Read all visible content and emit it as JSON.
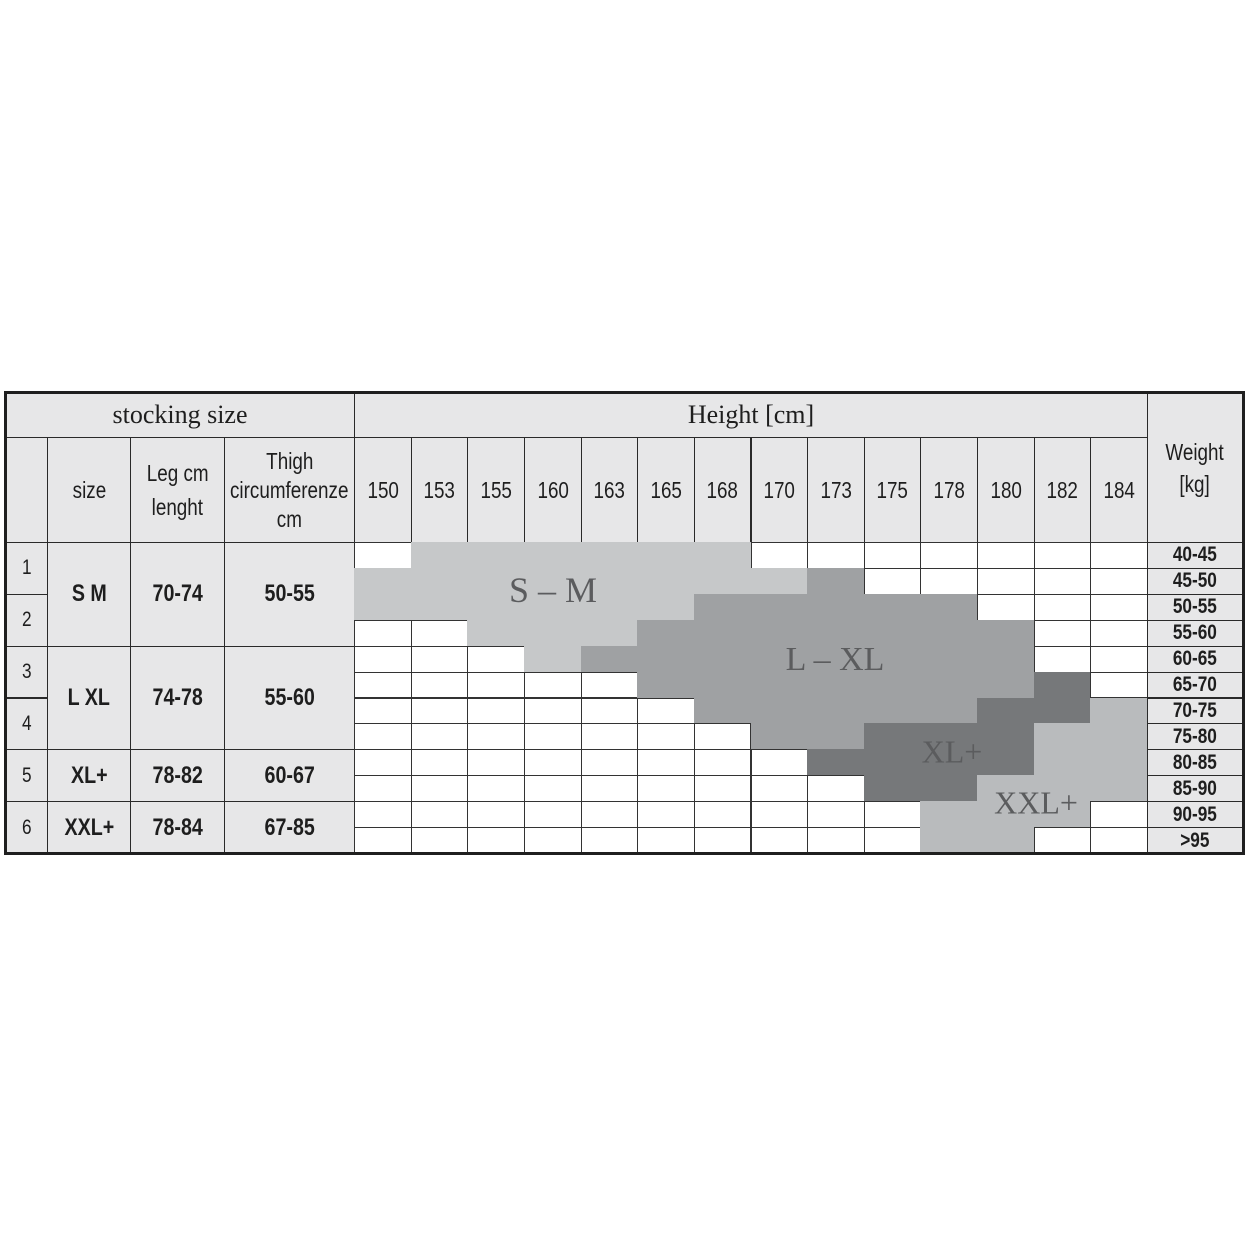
{
  "chart_data": {
    "type": "table",
    "title_left": "stocking size",
    "title_height": "Height [cm]",
    "columns_left": [
      "size",
      "Leg cm lenght",
      "Thigh circumferenze cm"
    ],
    "column_labels_left": {
      "size": "size",
      "leg_line1": "Leg cm",
      "leg_line2": "lenght",
      "thigh_line1": "Thigh",
      "thigh_line2": "circumferenze",
      "thigh_line3": "cm"
    },
    "weight_header": {
      "line1": "Weight",
      "line2": "[kg]"
    },
    "heights": [
      "150",
      "153",
      "155",
      "160",
      "163",
      "165",
      "168",
      "170",
      "173",
      "175",
      "178",
      "180",
      "182",
      "184"
    ],
    "weights": [
      "40-45",
      "45-50",
      "50-55",
      "55-60",
      "60-65",
      "65-70",
      "70-75",
      "75-80",
      "80-85",
      "85-90",
      "90-95",
      ">95"
    ],
    "row_numbers": [
      "1",
      "2",
      "3",
      "4",
      "5",
      "6"
    ],
    "sizes": [
      {
        "size": "S   M",
        "leg": "70-74",
        "thigh": "50-55"
      },
      {
        "size": "L   XL",
        "leg": "74-78",
        "thigh": "55-60"
      },
      {
        "size": "XL+",
        "leg": "78-82",
        "thigh": "60-67"
      },
      {
        "size": "XXL+",
        "leg": "78-84",
        "thigh": "67-85"
      }
    ],
    "zones": [
      {
        "code": 1,
        "label": "S – M",
        "color": "#c6c8c9"
      },
      {
        "code": 2,
        "label": "L – XL",
        "color": "#9fa1a3"
      },
      {
        "code": 3,
        "label": "XL+",
        "color": "#76787a"
      },
      {
        "code": 4,
        "label": "XXL+",
        "color": "#b9bbbd"
      }
    ],
    "grid_note": "rows = weights, columns = heights; 0 = no size",
    "grid": [
      [
        0,
        1,
        1,
        1,
        1,
        1,
        1,
        0,
        0,
        0,
        0,
        0,
        0,
        0
      ],
      [
        1,
        1,
        1,
        1,
        1,
        1,
        1,
        1,
        2,
        0,
        0,
        0,
        0,
        0
      ],
      [
        1,
        1,
        1,
        1,
        1,
        1,
        2,
        2,
        2,
        2,
        2,
        0,
        0,
        0
      ],
      [
        0,
        0,
        1,
        1,
        1,
        2,
        2,
        2,
        2,
        2,
        2,
        2,
        0,
        0
      ],
      [
        0,
        0,
        0,
        1,
        2,
        2,
        2,
        2,
        2,
        2,
        2,
        2,
        0,
        0
      ],
      [
        0,
        0,
        0,
        0,
        0,
        2,
        2,
        2,
        2,
        2,
        2,
        2,
        3,
        0
      ],
      [
        0,
        0,
        0,
        0,
        0,
        0,
        2,
        2,
        2,
        2,
        2,
        3,
        3,
        4
      ],
      [
        0,
        0,
        0,
        0,
        0,
        0,
        0,
        2,
        2,
        3,
        3,
        3,
        4,
        4
      ],
      [
        0,
        0,
        0,
        0,
        0,
        0,
        0,
        0,
        3,
        3,
        3,
        3,
        4,
        4
      ],
      [
        0,
        0,
        0,
        0,
        0,
        0,
        0,
        0,
        0,
        3,
        3,
        4,
        4,
        4
      ],
      [
        0,
        0,
        0,
        0,
        0,
        0,
        0,
        0,
        0,
        0,
        4,
        4,
        4,
        0
      ],
      [
        0,
        0,
        0,
        0,
        0,
        0,
        0,
        0,
        0,
        0,
        4,
        4,
        0,
        0
      ]
    ]
  }
}
